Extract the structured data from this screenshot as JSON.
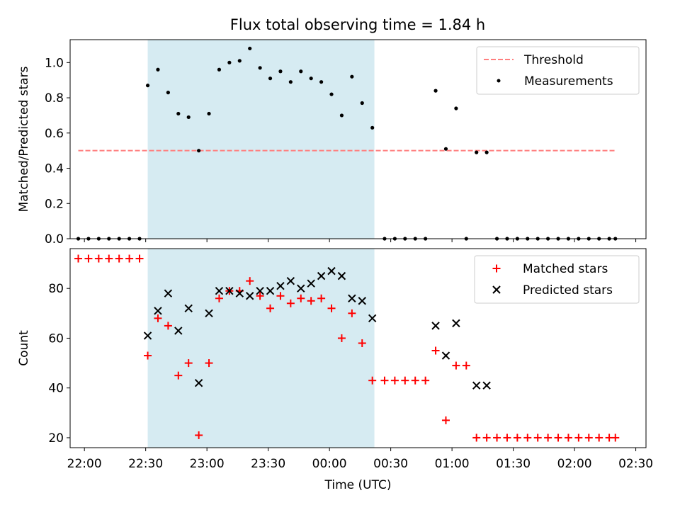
{
  "title": "Flux total observing time = 1.84 h",
  "xlabel": "Time (UTC)",
  "colors": {
    "threshold": "#ff7f7f",
    "measurement": "#000000",
    "matched": "#ff0000",
    "predicted": "#000000",
    "shade": "#add8e6"
  },
  "x_ticks": [
    "22:00",
    "22:30",
    "23:00",
    "23:30",
    "00:00",
    "00:30",
    "01:00",
    "01:30",
    "02:00",
    "02:30"
  ],
  "chart_data": [
    {
      "type": "scatter",
      "ylabel": "Matched/Predicted stars",
      "xlim": [
        "21:53",
        "02:35"
      ],
      "ylim": [
        0,
        1.13
      ],
      "y_ticks": [
        "0.0",
        "0.2",
        "0.4",
        "0.6",
        "0.8",
        "1.0"
      ],
      "shaded_span": [
        "22:31",
        "00:22"
      ],
      "threshold": {
        "name": "Threshold",
        "value": 0.5,
        "x": [
          "21:57",
          "02:20"
        ]
      },
      "legend": [
        "Threshold",
        "Measurements"
      ],
      "legend_position": "upper right",
      "series": [
        {
          "name": "Measurements",
          "x": [
            "21:57",
            "22:02",
            "22:07",
            "22:12",
            "22:17",
            "22:22",
            "22:27",
            "22:31",
            "22:36",
            "22:41",
            "22:46",
            "22:51",
            "22:56",
            "23:01",
            "23:06",
            "23:11",
            "23:16",
            "23:21",
            "23:26",
            "23:31",
            "23:36",
            "23:41",
            "23:46",
            "23:51",
            "23:56",
            "00:01",
            "00:06",
            "00:11",
            "00:16",
            "00:21",
            "00:27",
            "00:32",
            "00:37",
            "00:42",
            "00:47",
            "00:52",
            "00:57",
            "01:02",
            "01:07",
            "01:12",
            "01:17",
            "01:22",
            "01:27",
            "01:32",
            "01:37",
            "01:42",
            "01:47",
            "01:52",
            "01:57",
            "02:02",
            "02:07",
            "02:12",
            "02:17",
            "02:20"
          ],
          "y": [
            0,
            0,
            0,
            0,
            0,
            0,
            0,
            0.87,
            0.96,
            0.83,
            0.71,
            0.69,
            0.5,
            0.71,
            0.96,
            1.0,
            1.01,
            1.08,
            0.97,
            0.91,
            0.95,
            0.89,
            0.95,
            0.91,
            0.89,
            0.82,
            0.7,
            0.92,
            0.77,
            0.63,
            0,
            0,
            0,
            0,
            0,
            0.84,
            0.51,
            0.74,
            0,
            0.49,
            0.49,
            0,
            0,
            0,
            0,
            0,
            0,
            0,
            0,
            0,
            0,
            0,
            0,
            0
          ]
        }
      ]
    },
    {
      "type": "scatter",
      "ylabel": "Count",
      "xlim": [
        "21:53",
        "02:35"
      ],
      "ylim": [
        16,
        96
      ],
      "y_ticks": [
        "20",
        "40",
        "60",
        "80"
      ],
      "shaded_span": [
        "22:31",
        "00:22"
      ],
      "legend": [
        "Matched stars",
        "Predicted stars"
      ],
      "legend_position": "upper right",
      "series": [
        {
          "name": "Matched stars",
          "x": [
            "21:57",
            "22:02",
            "22:07",
            "22:12",
            "22:17",
            "22:22",
            "22:27",
            "22:31",
            "22:36",
            "22:41",
            "22:46",
            "22:51",
            "22:56",
            "23:01",
            "23:06",
            "23:11",
            "23:16",
            "23:21",
            "23:26",
            "23:31",
            "23:36",
            "23:41",
            "23:46",
            "23:51",
            "23:56",
            "00:01",
            "00:06",
            "00:11",
            "00:16",
            "00:21",
            "00:27",
            "00:32",
            "00:37",
            "00:42",
            "00:47",
            "00:52",
            "00:57",
            "01:02",
            "01:07",
            "01:12",
            "01:17",
            "01:22",
            "01:27",
            "01:32",
            "01:37",
            "01:42",
            "01:47",
            "01:52",
            "01:57",
            "02:02",
            "02:07",
            "02:12",
            "02:17",
            "02:20"
          ],
          "y": [
            92,
            92,
            92,
            92,
            92,
            92,
            92,
            53,
            68,
            65,
            45,
            50,
            21,
            50,
            76,
            79,
            79,
            83,
            77,
            72,
            77,
            74,
            76,
            75,
            76,
            72,
            60,
            70,
            58,
            43,
            43,
            43,
            43,
            43,
            43,
            55,
            27,
            49,
            49,
            20,
            20,
            20,
            20,
            20,
            20,
            20,
            20,
            20,
            20,
            20,
            20,
            20,
            20,
            20
          ]
        },
        {
          "name": "Predicted stars",
          "x": [
            "22:31",
            "22:36",
            "22:41",
            "22:46",
            "22:51",
            "22:56",
            "23:01",
            "23:06",
            "23:11",
            "23:16",
            "23:21",
            "23:26",
            "23:31",
            "23:36",
            "23:41",
            "23:46",
            "23:51",
            "23:56",
            "00:01",
            "00:06",
            "00:11",
            "00:16",
            "00:21",
            "00:52",
            "00:57",
            "01:02",
            "01:12",
            "01:17"
          ],
          "y": [
            61,
            71,
            78,
            63,
            72,
            42,
            70,
            79,
            79,
            78,
            77,
            79,
            79,
            81,
            83,
            80,
            82,
            85,
            87,
            85,
            76,
            75,
            68,
            65,
            53,
            66,
            41,
            41
          ]
        }
      ]
    }
  ]
}
